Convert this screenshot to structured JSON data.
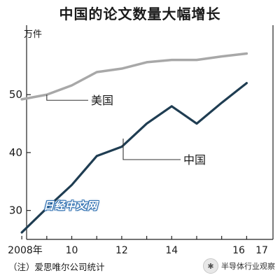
{
  "chart_data": {
    "type": "line",
    "title": "中国的论文数量大幅增长",
    "ylabel": "万件",
    "x": [
      2008,
      2009,
      2010,
      2011,
      2012,
      2013,
      2014,
      2015,
      2016,
      2017
    ],
    "x_tick_labels": [
      "2008年",
      "10",
      "12",
      "14",
      "16",
      "17"
    ],
    "y_ticks": [
      30,
      40,
      50
    ],
    "xlim": [
      2007.8,
      2017.2
    ],
    "ylim": [
      25,
      62
    ],
    "grid": false,
    "series": [
      {
        "name": "美国",
        "color": "#a8a8a8",
        "values": [
          49.2,
          50,
          51.6,
          53.9,
          54.5,
          55.6,
          56,
          56,
          56.6,
          57.1
        ]
      },
      {
        "name": "中国",
        "color": "#1f3d52",
        "values": [
          26.2,
          30.4,
          34.4,
          39.4,
          41,
          45,
          48,
          45,
          48.6,
          52
        ]
      }
    ],
    "note": "（注）爱思唯尔公司统计"
  },
  "watermark": "日经中文网",
  "source_label": "半导体行业观察",
  "source_icon": "wechat-icon"
}
